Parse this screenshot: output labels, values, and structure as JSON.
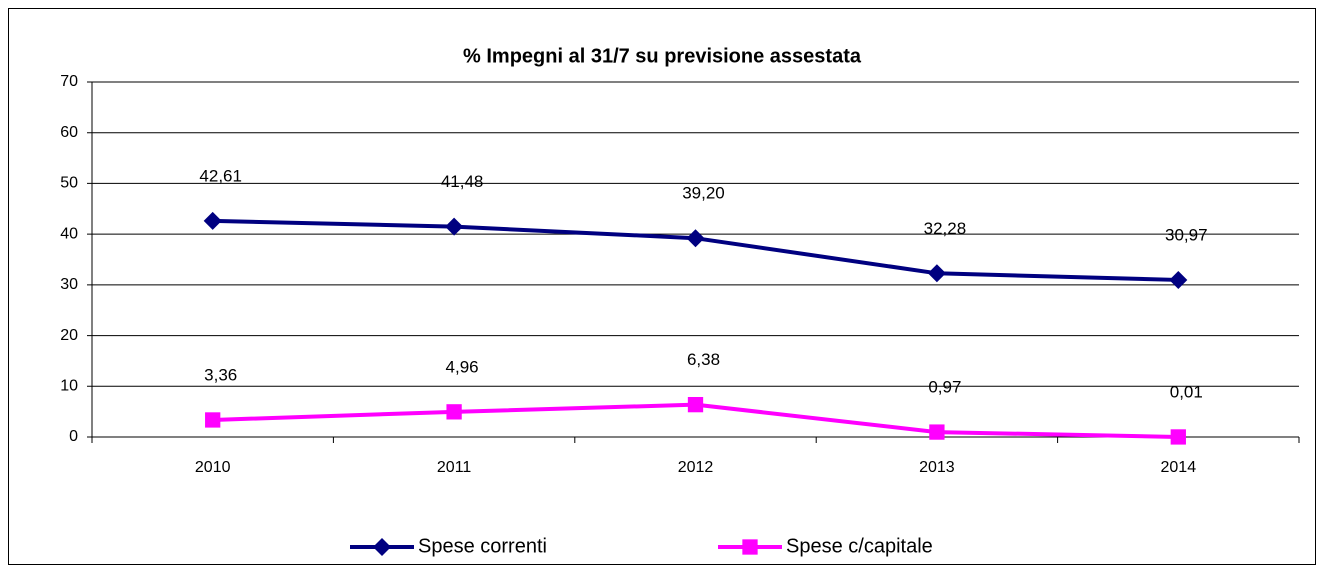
{
  "chart_data": {
    "type": "line",
    "title": "% Impegni al 31/7 su previsione assestata",
    "categories": [
      "2010",
      "2011",
      "2012",
      "2013",
      "2014"
    ],
    "series": [
      {
        "name": "Spese correnti",
        "color": "#000080",
        "marker": "diamond",
        "values": [
          42.61,
          41.48,
          39.2,
          32.28,
          30.97
        ],
        "value_labels": [
          "42,61",
          "41,48",
          "39,20",
          "32,28",
          "30,97"
        ]
      },
      {
        "name": "Spese c/capitale",
        "color": "#FF00FF",
        "marker": "square",
        "values": [
          3.36,
          4.96,
          6.38,
          0.97,
          0.01
        ],
        "value_labels": [
          "3,36",
          "4,96",
          "6,38",
          "0,97",
          "0,01"
        ]
      }
    ],
    "ylim": [
      0,
      70
    ],
    "yticks": [
      0,
      10,
      20,
      30,
      40,
      50,
      60,
      70
    ],
    "grid": true,
    "legend": "bottom"
  }
}
